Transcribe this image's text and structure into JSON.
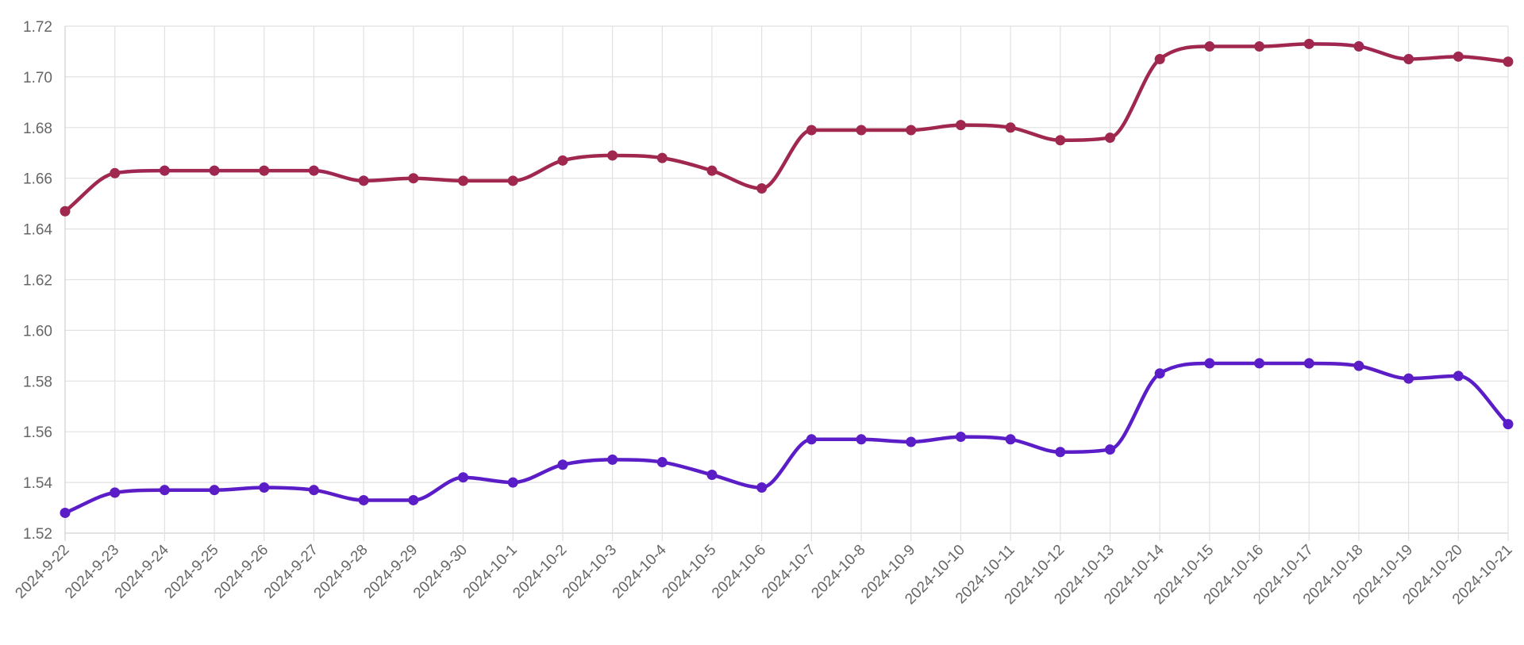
{
  "chart_data": {
    "type": "line",
    "title": "",
    "xlabel": "",
    "ylabel": "",
    "ylim": [
      1.52,
      1.72
    ],
    "y_ticks": [
      "1.52",
      "1.54",
      "1.56",
      "1.58",
      "1.60",
      "1.62",
      "1.64",
      "1.66",
      "1.68",
      "1.70",
      "1.72"
    ],
    "grid": true,
    "legend": "none",
    "categories": [
      "2024-9-22",
      "2024-9-23",
      "2024-9-24",
      "2024-9-25",
      "2024-9-26",
      "2024-9-27",
      "2024-9-28",
      "2024-9-29",
      "2024-9-30",
      "2024-10-1",
      "2024-10-2",
      "2024-10-3",
      "2024-10-4",
      "2024-10-5",
      "2024-10-6",
      "2024-10-7",
      "2024-10-8",
      "2024-10-9",
      "2024-10-10",
      "2024-10-11",
      "2024-10-12",
      "2024-10-13",
      "2024-10-14",
      "2024-10-15",
      "2024-10-16",
      "2024-10-17",
      "2024-10-18",
      "2024-10-19",
      "2024-10-20",
      "2024-10-21"
    ],
    "series": [
      {
        "color": "#a0284e",
        "values": [
          1.647,
          1.662,
          1.663,
          1.663,
          1.663,
          1.663,
          1.659,
          1.66,
          1.659,
          1.659,
          1.667,
          1.669,
          1.668,
          1.663,
          1.656,
          1.679,
          1.679,
          1.679,
          1.681,
          1.68,
          1.675,
          1.676,
          1.707,
          1.712,
          1.712,
          1.713,
          1.712,
          1.707,
          1.708,
          1.706
        ]
      },
      {
        "color": "#5a1dc7",
        "values": [
          1.528,
          1.536,
          1.537,
          1.537,
          1.538,
          1.537,
          1.533,
          1.533,
          1.542,
          1.54,
          1.547,
          1.549,
          1.548,
          1.543,
          1.538,
          1.557,
          1.557,
          1.556,
          1.558,
          1.557,
          1.552,
          1.553,
          1.583,
          1.587,
          1.587,
          1.587,
          1.586,
          1.581,
          1.582,
          1.563
        ]
      }
    ]
  }
}
